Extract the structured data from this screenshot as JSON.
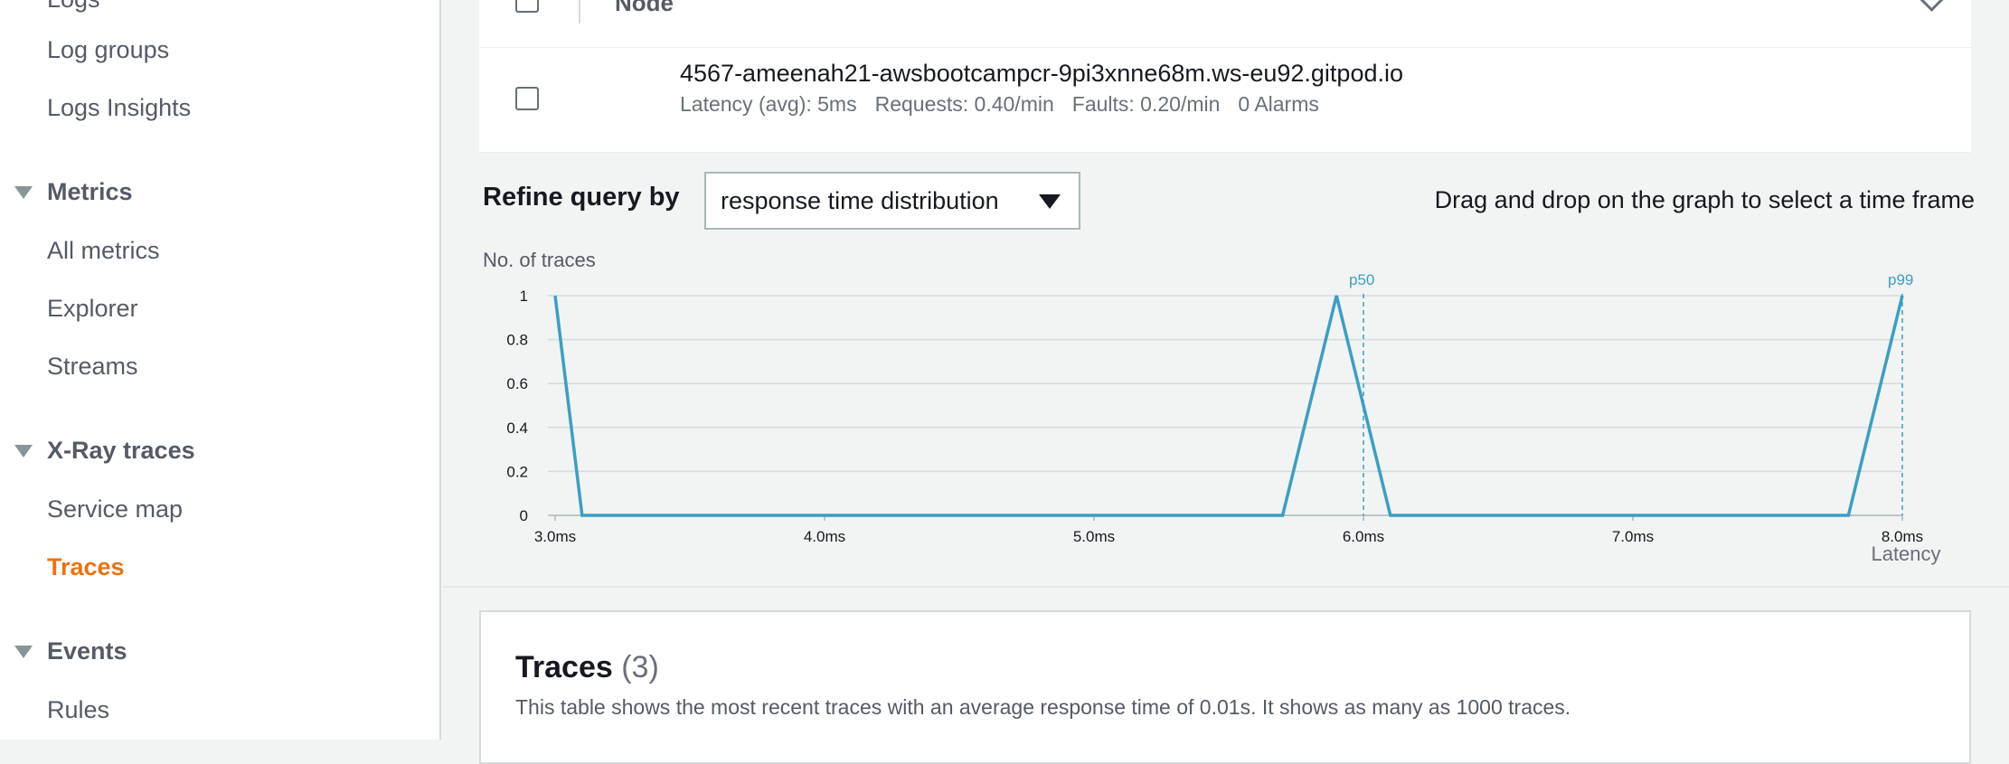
{
  "sidebar": {
    "items": [
      {
        "type": "link",
        "label": "Logs",
        "name": "sidebar-item-logs"
      },
      {
        "type": "link",
        "label": "Log groups",
        "name": "sidebar-item-log-groups"
      },
      {
        "type": "link",
        "label": "Logs Insights",
        "name": "sidebar-item-logs-insights"
      },
      {
        "type": "section",
        "label": "Metrics",
        "name": "sidebar-section-metrics"
      },
      {
        "type": "link",
        "label": "All metrics",
        "name": "sidebar-item-all-metrics"
      },
      {
        "type": "link",
        "label": "Explorer",
        "name": "sidebar-item-explorer"
      },
      {
        "type": "link",
        "label": "Streams",
        "name": "sidebar-item-streams"
      },
      {
        "type": "section",
        "label": "X-Ray traces",
        "name": "sidebar-section-xray-traces"
      },
      {
        "type": "link",
        "label": "Service map",
        "name": "sidebar-item-service-map"
      },
      {
        "type": "link",
        "label": "Traces",
        "name": "sidebar-item-traces",
        "active": true
      },
      {
        "type": "section",
        "label": "Events",
        "name": "sidebar-section-events"
      },
      {
        "type": "link",
        "label": "Rules",
        "name": "sidebar-item-rules"
      }
    ]
  },
  "nodes_table": {
    "header": "Node",
    "row": {
      "name": "4567-ameenah21-awsbootcampcr-9pi3xnne68m.ws-eu92.gitpod.io",
      "latency": "Latency (avg): 5ms",
      "requests": "Requests: 0.40/min",
      "faults": "Faults: 0.20/min",
      "alarms": "0 Alarms"
    }
  },
  "refine": {
    "label": "Refine query by",
    "selected": "response time distribution",
    "hint": "Drag and drop on the graph to select a time frame"
  },
  "chart_data": {
    "type": "line",
    "ylabel": "No. of traces",
    "xlabel": "Latency",
    "xlim": [
      3.0,
      8.0
    ],
    "x_unit": "ms",
    "yticks": [
      0,
      0.2,
      0.4,
      0.6,
      0.8,
      1
    ],
    "xticks": [
      "3.0ms",
      "4.0ms",
      "5.0ms",
      "6.0ms",
      "7.0ms",
      "8.0ms"
    ],
    "series": [
      {
        "x": [
          3.0,
          3.1,
          5.7,
          5.9,
          6.1,
          7.8,
          8.0
        ],
        "y": [
          1,
          0,
          0,
          1,
          0,
          0,
          1
        ]
      }
    ],
    "markers": [
      {
        "label": "p50",
        "x": 6.0
      },
      {
        "label": "p99",
        "x": 8.0
      }
    ],
    "grid": true,
    "color": "#3a9fc4"
  },
  "traces": {
    "title": "Traces",
    "count": "(3)",
    "description": "This table shows the most recent traces with an average response time of 0.01s. It shows as many as 1000 traces."
  }
}
